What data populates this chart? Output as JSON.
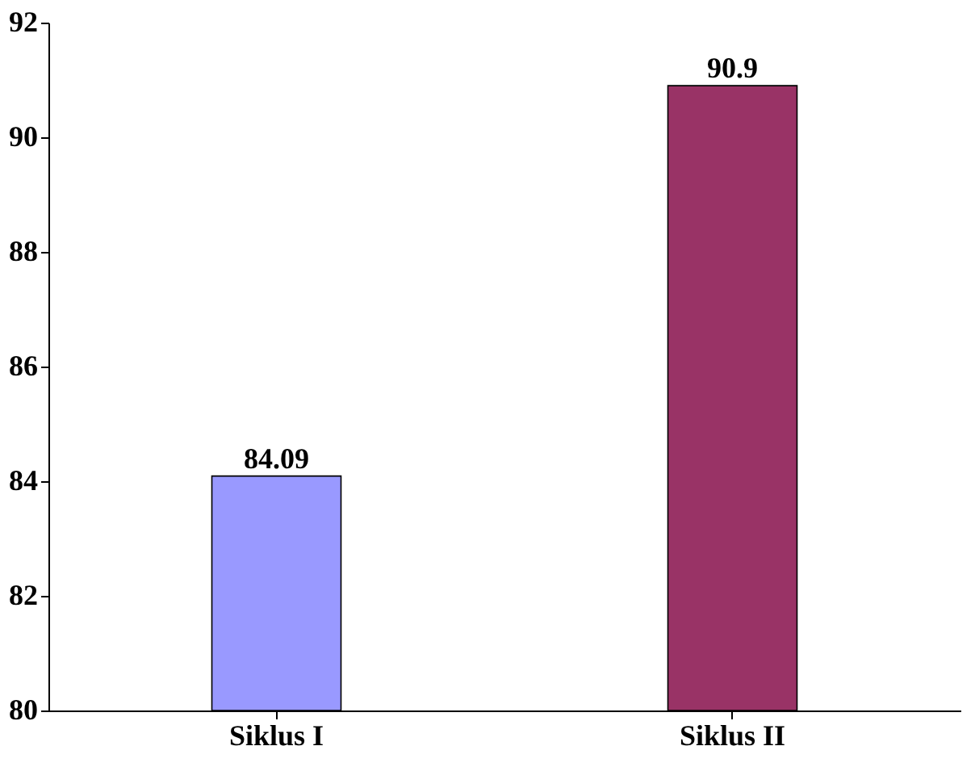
{
  "chart_data": {
    "type": "bar",
    "categories": [
      "Siklus I",
      "Siklus II"
    ],
    "values": [
      84.09,
      90.9
    ],
    "colors": [
      "#9999ff",
      "#993366"
    ],
    "ylim": [
      80,
      92
    ],
    "yticks": [
      80,
      82,
      84,
      86,
      88,
      90,
      92
    ],
    "data_labels": true,
    "grid": false
  }
}
